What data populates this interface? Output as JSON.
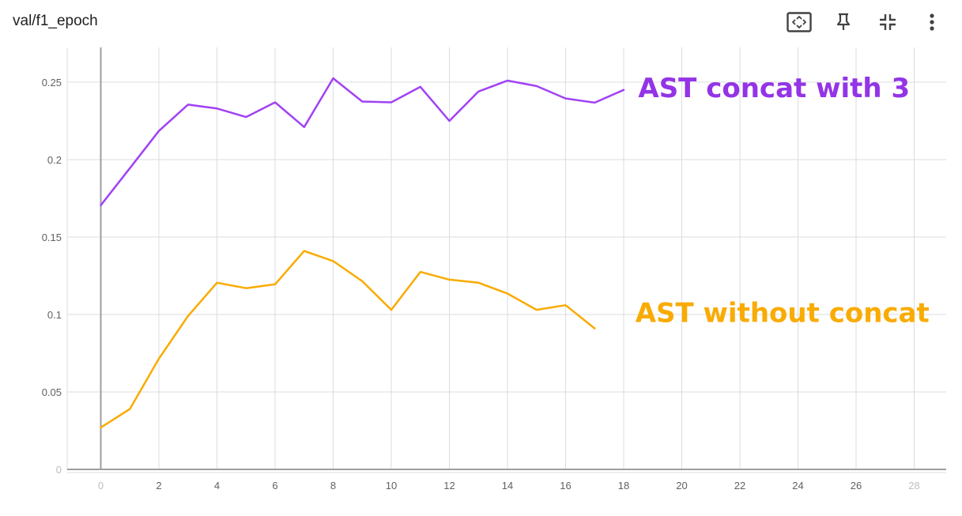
{
  "card": {
    "title": "val/f1_epoch",
    "toolbar": [
      {
        "name": "fit-domain-button",
        "icon": "fit-screen-icon"
      },
      {
        "name": "pin-button",
        "icon": "pin-icon"
      },
      {
        "name": "collapse-button",
        "icon": "collapse-icon"
      },
      {
        "name": "more-options-button",
        "icon": "more-vert-icon"
      }
    ]
  },
  "chart_data": {
    "type": "line",
    "title": "val/f1_epoch",
    "xlabel": "",
    "ylabel": "",
    "xlim": [
      -1.2,
      29
    ],
    "ylim": [
      0,
      0.27
    ],
    "x_ticks": [
      0,
      2,
      4,
      6,
      8,
      10,
      12,
      14,
      16,
      18,
      20,
      22,
      24,
      26,
      28
    ],
    "y_ticks": [
      0,
      0.05,
      0.1,
      0.15,
      0.2,
      0.25
    ],
    "y_tick_labels": [
      "0",
      "0.05",
      "0.1",
      "0.15",
      "0.2",
      "0.25"
    ],
    "grid": true,
    "series": [
      {
        "name": "",
        "color": "#a142f4",
        "x": [
          0,
          1,
          2,
          3,
          4,
          5,
          6,
          7,
          8,
          9,
          10,
          11,
          12,
          13,
          14,
          15,
          16,
          17,
          18
        ],
        "values": [
          0.1705,
          0.1945,
          0.2185,
          0.2355,
          0.233,
          0.2275,
          0.237,
          0.221,
          0.2525,
          0.2375,
          0.237,
          0.247,
          0.225,
          0.244,
          0.251,
          0.2475,
          0.2395,
          0.2368,
          0.245
        ]
      },
      {
        "name": "",
        "color": "#f9ab00",
        "x": [
          0,
          1,
          2,
          3,
          4,
          5,
          6,
          7,
          8,
          9,
          10,
          11,
          12,
          13,
          14,
          15,
          16,
          17
        ],
        "values": [
          0.027,
          0.039,
          0.0715,
          0.099,
          0.1205,
          0.117,
          0.1195,
          0.141,
          0.1345,
          0.1215,
          0.103,
          0.1275,
          0.1225,
          0.1205,
          0.1135,
          0.103,
          0.106,
          0.091
        ]
      }
    ],
    "annotations": [
      {
        "text": "AST concat with 3",
        "color": "#9334e6",
        "x": 18.5,
        "y": 0.2465
      },
      {
        "text": "AST without concat",
        "color": "#f9ab00",
        "x": 18.4,
        "y": 0.1013
      }
    ]
  }
}
